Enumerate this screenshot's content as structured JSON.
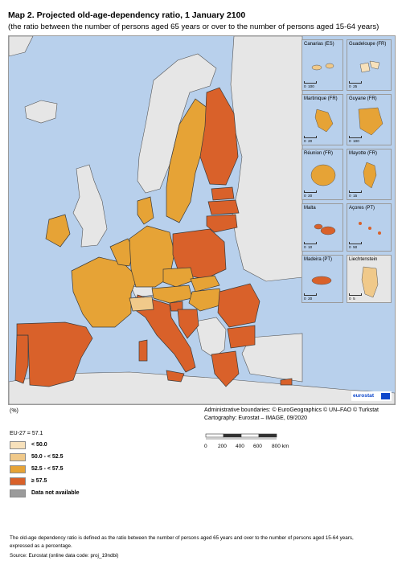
{
  "title": "Map 2. Projected old-age-dependency ratio, 1 January 2100",
  "subtitle": "(the ratio between the number of persons aged 65 years or over to the number of persons aged 15-64 years)",
  "unit": "(%)",
  "admin_boundaries": "Administrative boundaries: © EuroGeographics © UN–FAO © Turkstat",
  "cartography": "Cartography: Eurostat – IMAGE, 09/2020",
  "eu27_value": "EU-27 = 57.1",
  "legend": [
    {
      "label": "< 50.0",
      "color": "#f7e1bb"
    },
    {
      "label": "50.0 - < 52.5",
      "color": "#f0c98a"
    },
    {
      "label": "52.5 - < 57.5",
      "color": "#e6a336"
    },
    {
      "label": "≥ 57.5",
      "color": "#d9612a"
    },
    {
      "label": "Data not available",
      "color": "#9b9b9b"
    }
  ],
  "scale": {
    "ticks": [
      "0",
      "200",
      "400",
      "600",
      "800 km"
    ]
  },
  "insets": [
    {
      "name": "Canarias (ES)",
      "scale": [
        "0",
        "100"
      ]
    },
    {
      "name": "Guadeloupe (FR)",
      "scale": [
        "0",
        "25"
      ]
    },
    {
      "name": "Martinique (FR)",
      "scale": [
        "0",
        "20"
      ]
    },
    {
      "name": "Guyane (FR)",
      "scale": [
        "0",
        "100"
      ]
    },
    {
      "name": "Réunion (FR)",
      "scale": [
        "0",
        "20"
      ]
    },
    {
      "name": "Mayotte (FR)",
      "scale": [
        "0",
        "15"
      ]
    },
    {
      "name": "Malta",
      "scale": [
        "0",
        "10"
      ]
    },
    {
      "name": "Açores (PT)",
      "scale": [
        "0",
        "50"
      ]
    },
    {
      "name": "Madeira (PT)",
      "scale": [
        "0",
        "20"
      ]
    },
    {
      "name": "Liechtenstein",
      "scale": [
        "0",
        "5"
      ]
    }
  ],
  "logo_text": "eurostat",
  "footnote_1": "The old-age dependency ratio is defined as the ratio between the number of persons aged 65 years and over to the number of persons aged 15-64 years,",
  "footnote_2": "expressed as a percentage.",
  "footnote_3": "Source: Eurostat (online data code: proj_19ndbi)",
  "colors": {
    "sea": "#b8d0ec",
    "non_eu": "#e6e6e6",
    "border": "#3a3a3a"
  }
}
